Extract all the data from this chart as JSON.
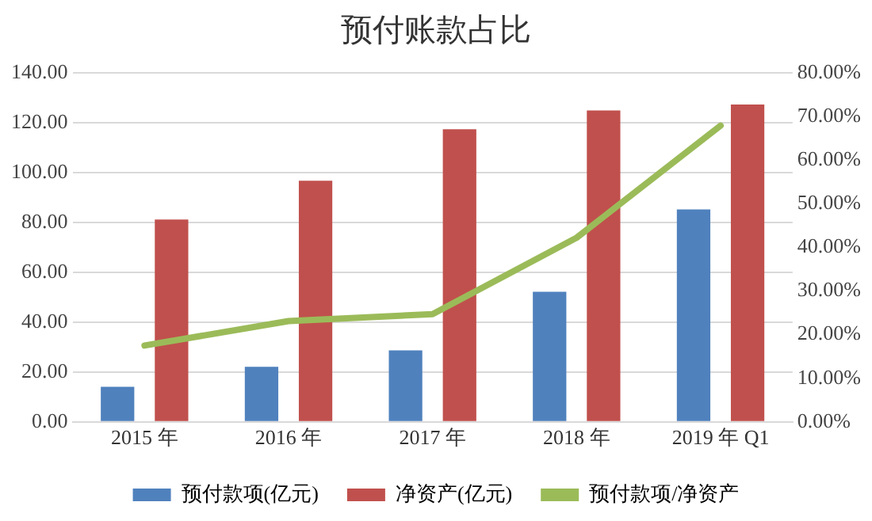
{
  "chart_data": {
    "type": "bar",
    "title": "预付账款占比",
    "categories": [
      "2015 年",
      "2016 年",
      "2017 年",
      "2018 年",
      "2019 年 Q1"
    ],
    "series": [
      {
        "name": "预付款项(亿元)",
        "color": "#4f81bd",
        "values": [
          14.1,
          22.1,
          28.7,
          52.2,
          85.2
        ]
      },
      {
        "name": "净资产(亿元)",
        "color": "#c0504d",
        "values": [
          81.2,
          96.7,
          117.4,
          124.9,
          127.3
        ]
      },
      {
        "name": "预付款项/净资产",
        "type": "line",
        "axis": "y2",
        "color": "#9bbb59",
        "values": [
          17.5,
          23.1,
          24.7,
          42.2,
          67.9
        ]
      }
    ],
    "ylim": [
      0,
      140
    ],
    "yticks": [
      {
        "value": 0,
        "label": "0.00"
      },
      {
        "value": 20,
        "label": "20.00"
      },
      {
        "value": 40,
        "label": "40.00"
      },
      {
        "value": 60,
        "label": "60.00"
      },
      {
        "value": 80,
        "label": "80.00"
      },
      {
        "value": 100,
        "label": "100.00"
      },
      {
        "value": 120,
        "label": "120.00"
      },
      {
        "value": 140,
        "label": "140.00"
      }
    ],
    "y2lim": [
      0,
      80
    ],
    "y2ticks": [
      {
        "value": 0,
        "label": "0.00%"
      },
      {
        "value": 10,
        "label": "10.00%"
      },
      {
        "value": 20,
        "label": "20.00%"
      },
      {
        "value": 30,
        "label": "30.00%"
      },
      {
        "value": 40,
        "label": "40.00%"
      },
      {
        "value": 50,
        "label": "50.00%"
      },
      {
        "value": 60,
        "label": "60.00%"
      },
      {
        "value": 70,
        "label": "70.00%"
      },
      {
        "value": 80,
        "label": "80.00%"
      }
    ],
    "grid": "y",
    "legend": "bottom",
    "marker": "none"
  }
}
